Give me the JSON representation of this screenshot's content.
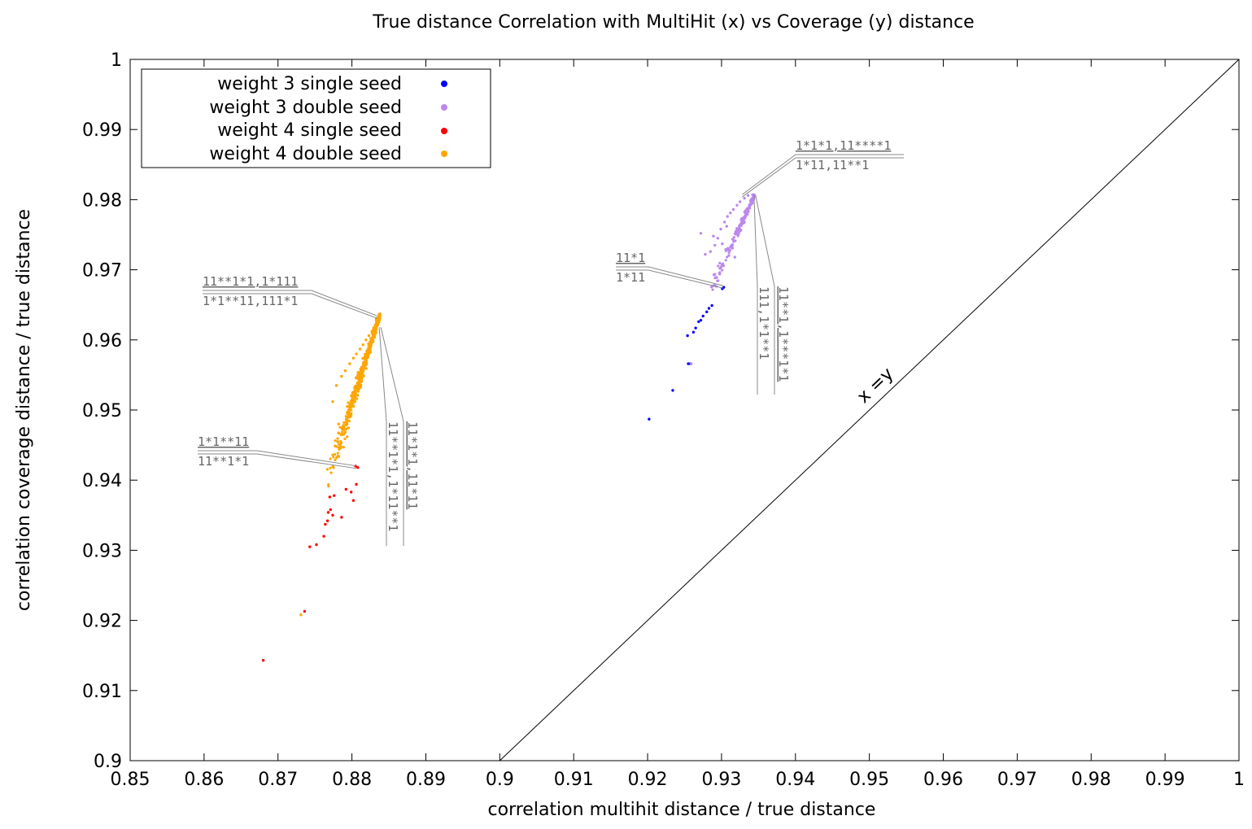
{
  "chart_data": {
    "type": "scatter",
    "title": "True distance Correlation with MultiHit (x) vs Coverage (y) distance",
    "xlabel": "correlation multihit distance / true distance",
    "ylabel": "correlation coverage distance / true distance",
    "xlim": [
      0.85,
      1.0
    ],
    "ylim": [
      0.9,
      1.0
    ],
    "x_ticks": [
      "0.85",
      "0.86",
      "0.87",
      "0.88",
      "0.89",
      "0.9",
      "0.91",
      "0.92",
      "0.93",
      "0.94",
      "0.95",
      "0.96",
      "0.97",
      "0.98",
      "0.99",
      "1"
    ],
    "y_ticks": [
      "0.9",
      "0.91",
      "0.92",
      "0.93",
      "0.94",
      "0.95",
      "0.96",
      "0.97",
      "0.98",
      "0.99",
      "1"
    ],
    "grid": false,
    "legend_position": "top-left",
    "reference_line": {
      "label": "x =y"
    },
    "series": [
      {
        "name": "weight 3 single seed",
        "color": "#0000ff",
        "points": [
          [
            0.9202,
            0.9487
          ],
          [
            0.9234,
            0.9528
          ],
          [
            0.9255,
            0.9566
          ],
          [
            0.9258,
            0.9566
          ],
          [
            0.9254,
            0.9606
          ],
          [
            0.9262,
            0.9611
          ],
          [
            0.9265,
            0.9617
          ],
          [
            0.9269,
            0.9626
          ],
          [
            0.9272,
            0.9628
          ],
          [
            0.9275,
            0.9634
          ],
          [
            0.928,
            0.964
          ],
          [
            0.9283,
            0.9645
          ],
          [
            0.9287,
            0.9649
          ],
          [
            0.9301,
            0.9673
          ],
          [
            0.9303,
            0.9675
          ]
        ]
      },
      {
        "name": "weight 3 double seed",
        "color": "#bb88ee",
        "cluster": {
          "x_range": [
            0.9255,
            0.9345
          ],
          "y_range": [
            0.9565,
            0.9807
          ]
        },
        "points": [
          [
            0.9259,
            0.9566
          ],
          [
            0.9272,
            0.9752
          ],
          [
            0.9278,
            0.9722
          ],
          [
            0.9285,
            0.9726
          ],
          [
            0.9291,
            0.9735
          ],
          [
            0.9295,
            0.9745
          ],
          [
            0.9299,
            0.9758
          ],
          [
            0.9304,
            0.9768
          ],
          [
            0.9308,
            0.9776
          ],
          [
            0.9312,
            0.9781
          ],
          [
            0.9316,
            0.9786
          ],
          [
            0.9321,
            0.9792
          ],
          [
            0.9325,
            0.9797
          ],
          [
            0.9331,
            0.9802
          ],
          [
            0.9336,
            0.9806
          ],
          [
            0.9342,
            0.9807
          ],
          [
            0.9318,
            0.9718
          ],
          [
            0.9301,
            0.9737
          ],
          [
            0.9289,
            0.9748
          ],
          [
            0.9307,
            0.9762
          ]
        ]
      },
      {
        "name": "weight 4 single seed",
        "color": "#ff0000",
        "points": [
          [
            0.868,
            0.9143
          ],
          [
            0.8736,
            0.9213
          ],
          [
            0.8743,
            0.9305
          ],
          [
            0.8752,
            0.9308
          ],
          [
            0.8762,
            0.932
          ],
          [
            0.8764,
            0.9337
          ],
          [
            0.8767,
            0.9342
          ],
          [
            0.8768,
            0.9354
          ],
          [
            0.8771,
            0.9358
          ],
          [
            0.8774,
            0.935
          ],
          [
            0.877,
            0.9376
          ],
          [
            0.8776,
            0.9378
          ],
          [
            0.8786,
            0.9347
          ],
          [
            0.8792,
            0.9387
          ],
          [
            0.8799,
            0.9383
          ],
          [
            0.8802,
            0.9371
          ],
          [
            0.8806,
            0.9394
          ],
          [
            0.8805,
            0.942
          ],
          [
            0.8808,
            0.9418
          ]
        ]
      },
      {
        "name": "weight 4 double seed",
        "color": "#ffa500",
        "cluster": {
          "x_range": [
            0.873,
            0.8838
          ],
          "y_range": [
            0.9208,
            0.9637
          ]
        },
        "points": [
          [
            0.8731,
            0.9208
          ],
          [
            0.8785,
            0.9446
          ],
          [
            0.8782,
            0.948
          ],
          [
            0.8774,
            0.9512
          ],
          [
            0.8779,
            0.9535
          ],
          [
            0.8786,
            0.9548
          ],
          [
            0.8791,
            0.9556
          ],
          [
            0.8797,
            0.9566
          ],
          [
            0.8802,
            0.9574
          ],
          [
            0.8806,
            0.958
          ],
          [
            0.8811,
            0.9587
          ],
          [
            0.8815,
            0.9593
          ],
          [
            0.8819,
            0.96
          ],
          [
            0.8823,
            0.9606
          ],
          [
            0.8827,
            0.9612
          ],
          [
            0.8832,
            0.962
          ],
          [
            0.8836,
            0.9628
          ],
          [
            0.8837,
            0.9636
          ],
          [
            0.8796,
            0.9498
          ],
          [
            0.8808,
            0.9521
          ]
        ]
      }
    ],
    "annotations": [
      {
        "lines": [
          "1*1*1,11****1",
          "1*11,11**1"
        ],
        "point": [
          0.9328,
          0.9805
        ],
        "anchor": [
          0.934,
          0.9804
        ],
        "orientation": "horizontal"
      },
      {
        "lines": [
          "11**1,1***1*1",
          "111,1*1**1"
        ],
        "point": [
          0.9345,
          0.9806
        ],
        "anchor": [
          0.9342,
          0.9805
        ],
        "orientation": "vertical"
      },
      {
        "lines": [
          "11*1",
          "1*11"
        ],
        "point": [
          0.9302,
          0.9675
        ],
        "anchor": [
          0.9301,
          0.9675
        ],
        "orientation": "horizontal"
      },
      {
        "lines": [
          "11**1*1,1*111",
          "1*1**11,111*1"
        ],
        "point": [
          0.8834,
          0.9632
        ],
        "anchor": [
          0.8832,
          0.9632
        ],
        "orientation": "horizontal"
      },
      {
        "lines": [
          "11*1*1,11*11",
          "11**1*1,1*11**1"
        ],
        "point": [
          0.8838,
          0.9618
        ],
        "anchor": [
          0.8835,
          0.9618
        ],
        "orientation": "vertical"
      },
      {
        "lines": [
          "1*1**11",
          "11**1*1"
        ],
        "point": [
          0.8806,
          0.9418
        ],
        "anchor": [
          0.8806,
          0.9418
        ],
        "orientation": "horizontal"
      }
    ]
  }
}
